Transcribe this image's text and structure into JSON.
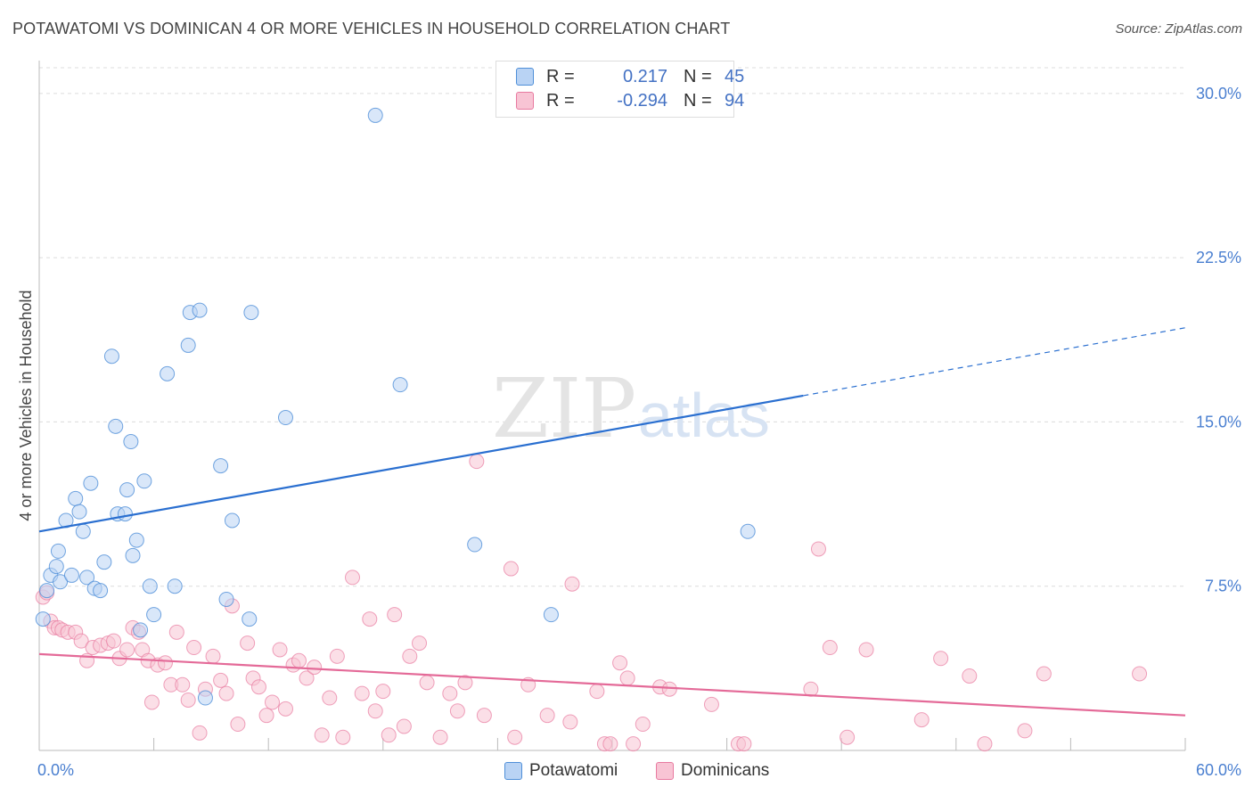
{
  "title": "POTAWATOMI VS DOMINICAN 4 OR MORE VEHICLES IN HOUSEHOLD CORRELATION CHART",
  "source": "Source: ZipAtlas.com",
  "watermark": {
    "zip": "ZIP",
    "atlas": "atlas"
  },
  "colors": {
    "blue": "#4f8fd8",
    "blue_fill": "#b9d3f4",
    "pink": "#e87aa0",
    "pink_fill": "#f8c4d4",
    "blue_line": "#2a6fd0",
    "pink_line": "#e46a98",
    "axis_text": "#4a7fd0"
  },
  "legend": {
    "rows": [
      {
        "r_label": "R =",
        "r_value": "0.217",
        "n_label": "N =",
        "n_value": "45"
      },
      {
        "r_label": "R =",
        "r_value": "-0.294",
        "n_label": "N =",
        "n_value": "94"
      }
    ]
  },
  "bottom_legend": {
    "series1": "Potawatomi",
    "series2": "Dominicans"
  },
  "chart_data": {
    "type": "scatter",
    "title": "POTAWATOMI VS DOMINICAN 4 OR MORE VEHICLES IN HOUSEHOLD CORRELATION CHART",
    "xlabel": "",
    "ylabel": "4 or more Vehicles in Household",
    "xlim": [
      0,
      60
    ],
    "ylim": [
      0,
      31.5
    ],
    "x_tick_labels": [
      "0.0%",
      "60.0%"
    ],
    "y_ticks": [
      7.5,
      15.0,
      22.5,
      30.0
    ],
    "y_tick_labels": [
      "7.5%",
      "15.0%",
      "22.5%",
      "30.0%"
    ],
    "grid": true,
    "series": [
      {
        "name": "Potawatomi",
        "r": 0.217,
        "n": 45,
        "trend": {
          "x0": 0,
          "y0": 10.0,
          "x1": 40,
          "y1": 16.2,
          "dash_x1": 60,
          "dash_y1": 19.3
        },
        "points": [
          [
            0.2,
            6.0
          ],
          [
            0.4,
            7.3
          ],
          [
            0.6,
            8.0
          ],
          [
            0.9,
            8.4
          ],
          [
            1.0,
            9.1
          ],
          [
            1.1,
            7.7
          ],
          [
            1.4,
            10.5
          ],
          [
            1.7,
            8.0
          ],
          [
            1.9,
            11.5
          ],
          [
            2.1,
            10.9
          ],
          [
            2.3,
            10.0
          ],
          [
            2.5,
            7.9
          ],
          [
            2.7,
            12.2
          ],
          [
            2.9,
            7.4
          ],
          [
            3.2,
            7.3
          ],
          [
            3.4,
            8.6
          ],
          [
            3.8,
            18.0
          ],
          [
            4.0,
            14.8
          ],
          [
            4.1,
            10.8
          ],
          [
            4.5,
            10.8
          ],
          [
            4.6,
            11.9
          ],
          [
            4.8,
            14.1
          ],
          [
            4.9,
            8.9
          ],
          [
            5.1,
            9.6
          ],
          [
            5.3,
            5.5
          ],
          [
            5.5,
            12.3
          ],
          [
            5.8,
            7.5
          ],
          [
            6.0,
            6.2
          ],
          [
            6.7,
            17.2
          ],
          [
            7.1,
            7.5
          ],
          [
            7.8,
            18.5
          ],
          [
            7.9,
            20.0
          ],
          [
            8.4,
            20.1
          ],
          [
            8.7,
            2.4
          ],
          [
            9.5,
            13.0
          ],
          [
            9.8,
            6.9
          ],
          [
            10.1,
            10.5
          ],
          [
            11.0,
            6.0
          ],
          [
            11.1,
            20.0
          ],
          [
            12.9,
            15.2
          ],
          [
            17.6,
            29.0
          ],
          [
            18.9,
            16.7
          ],
          [
            22.8,
            9.4
          ],
          [
            26.8,
            6.2
          ],
          [
            37.1,
            10.0
          ]
        ]
      },
      {
        "name": "Dominicans",
        "r": -0.294,
        "n": 94,
        "trend": {
          "x0": 0,
          "y0": 4.4,
          "x1": 60,
          "y1": 1.6
        },
        "points": [
          [
            0.2,
            7.0
          ],
          [
            0.4,
            7.2
          ],
          [
            0.6,
            5.9
          ],
          [
            0.8,
            5.6
          ],
          [
            1.0,
            5.6
          ],
          [
            1.2,
            5.5
          ],
          [
            1.5,
            5.4
          ],
          [
            1.9,
            5.4
          ],
          [
            2.2,
            5.0
          ],
          [
            2.5,
            4.1
          ],
          [
            2.8,
            4.7
          ],
          [
            3.2,
            4.8
          ],
          [
            3.6,
            4.9
          ],
          [
            3.9,
            5.0
          ],
          [
            4.2,
            4.2
          ],
          [
            4.6,
            4.6
          ],
          [
            4.9,
            5.6
          ],
          [
            5.2,
            5.4
          ],
          [
            5.4,
            4.6
          ],
          [
            5.7,
            4.1
          ],
          [
            5.9,
            2.2
          ],
          [
            6.2,
            3.9
          ],
          [
            6.6,
            4.0
          ],
          [
            6.9,
            3.0
          ],
          [
            7.2,
            5.4
          ],
          [
            7.5,
            3.0
          ],
          [
            7.8,
            2.3
          ],
          [
            8.1,
            4.7
          ],
          [
            8.4,
            0.8
          ],
          [
            8.7,
            2.8
          ],
          [
            9.1,
            4.3
          ],
          [
            9.5,
            3.2
          ],
          [
            9.8,
            2.6
          ],
          [
            10.1,
            6.6
          ],
          [
            10.4,
            1.2
          ],
          [
            10.9,
            4.9
          ],
          [
            11.2,
            3.3
          ],
          [
            11.5,
            2.9
          ],
          [
            11.9,
            1.6
          ],
          [
            12.2,
            2.2
          ],
          [
            12.6,
            4.6
          ],
          [
            12.9,
            1.9
          ],
          [
            13.3,
            3.9
          ],
          [
            13.6,
            4.1
          ],
          [
            14.0,
            3.3
          ],
          [
            14.4,
            3.8
          ],
          [
            14.8,
            0.7
          ],
          [
            15.2,
            2.4
          ],
          [
            15.6,
            4.3
          ],
          [
            15.9,
            0.6
          ],
          [
            16.4,
            7.9
          ],
          [
            16.9,
            2.6
          ],
          [
            17.3,
            6.0
          ],
          [
            17.6,
            1.8
          ],
          [
            18.0,
            2.7
          ],
          [
            18.3,
            0.7
          ],
          [
            18.6,
            6.2
          ],
          [
            19.1,
            1.1
          ],
          [
            19.4,
            4.3
          ],
          [
            19.9,
            4.9
          ],
          [
            20.3,
            3.1
          ],
          [
            21.0,
            0.6
          ],
          [
            21.5,
            2.6
          ],
          [
            21.9,
            1.8
          ],
          [
            22.3,
            3.1
          ],
          [
            22.9,
            13.2
          ],
          [
            23.3,
            1.6
          ],
          [
            24.7,
            8.3
          ],
          [
            24.9,
            0.6
          ],
          [
            25.6,
            3.0
          ],
          [
            26.6,
            1.6
          ],
          [
            27.8,
            1.3
          ],
          [
            27.9,
            7.6
          ],
          [
            29.2,
            2.7
          ],
          [
            29.6,
            0.3
          ],
          [
            29.9,
            0.3
          ],
          [
            30.4,
            4.0
          ],
          [
            30.8,
            3.3
          ],
          [
            31.1,
            0.3
          ],
          [
            31.6,
            1.2
          ],
          [
            32.5,
            2.9
          ],
          [
            33.0,
            2.8
          ],
          [
            35.2,
            2.1
          ],
          [
            36.6,
            0.3
          ],
          [
            36.9,
            0.3
          ],
          [
            40.4,
            2.8
          ],
          [
            40.8,
            9.2
          ],
          [
            41.4,
            4.7
          ],
          [
            42.3,
            0.6
          ],
          [
            43.3,
            4.6
          ],
          [
            46.2,
            1.4
          ],
          [
            47.2,
            4.2
          ],
          [
            48.7,
            3.4
          ],
          [
            49.5,
            0.3
          ],
          [
            51.6,
            0.9
          ],
          [
            52.6,
            3.5
          ],
          [
            57.6,
            3.5
          ]
        ]
      }
    ]
  }
}
